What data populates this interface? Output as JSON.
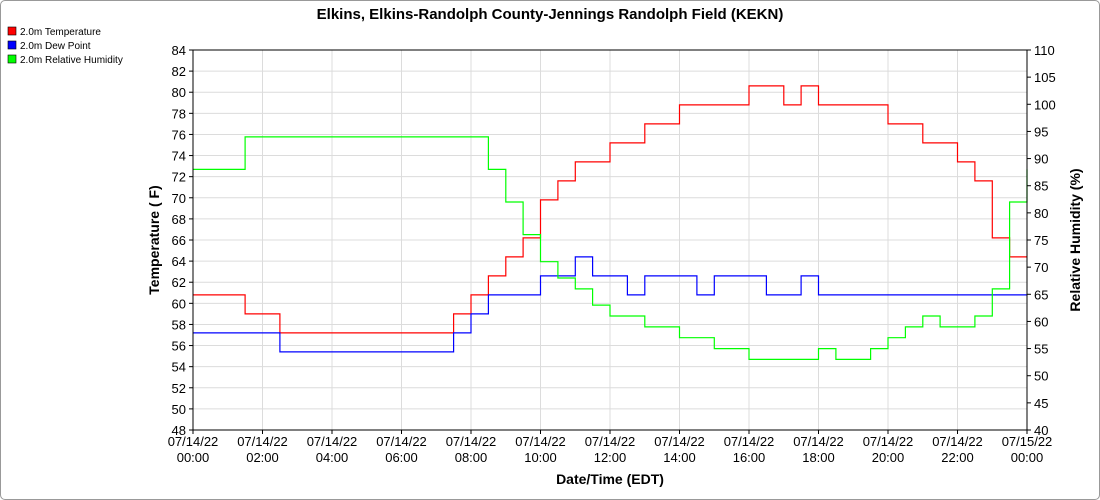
{
  "chart_data": {
    "type": "line",
    "title": "Elkins, Elkins-Randolph County-Jennings Randolph Field (KEKN)",
    "xlabel": "Date/Time (EDT)",
    "ylabel": "Temperature ( F)",
    "y2label": "Relative Humidity (%)",
    "xlim": [
      0,
      24
    ],
    "ylim": [
      48,
      84
    ],
    "y2lim": [
      40,
      110
    ],
    "y_ticks": [
      "48",
      "50",
      "52",
      "54",
      "56",
      "58",
      "60",
      "62",
      "64",
      "66",
      "68",
      "70",
      "72",
      "74",
      "76",
      "78",
      "80",
      "82",
      "84"
    ],
    "y2_ticks": [
      "40",
      "45",
      "50",
      "55",
      "60",
      "65",
      "70",
      "75",
      "80",
      "85",
      "90",
      "95",
      "100",
      "105",
      "110"
    ],
    "x_ticks": [
      {
        "hour": 0,
        "line1": "07/14/22",
        "line2": "00:00"
      },
      {
        "hour": 2,
        "line1": "07/14/22",
        "line2": "02:00"
      },
      {
        "hour": 4,
        "line1": "07/14/22",
        "line2": "04:00"
      },
      {
        "hour": 6,
        "line1": "07/14/22",
        "line2": "06:00"
      },
      {
        "hour": 8,
        "line1": "07/14/22",
        "line2": "08:00"
      },
      {
        "hour": 10,
        "line1": "07/14/22",
        "line2": "10:00"
      },
      {
        "hour": 12,
        "line1": "07/14/22",
        "line2": "12:00"
      },
      {
        "hour": 14,
        "line1": "07/14/22",
        "line2": "14:00"
      },
      {
        "hour": 16,
        "line1": "07/14/22",
        "line2": "16:00"
      },
      {
        "hour": 18,
        "line1": "07/14/22",
        "line2": "18:00"
      },
      {
        "hour": 20,
        "line1": "07/14/22",
        "line2": "20:00"
      },
      {
        "hour": 22,
        "line1": "07/14/22",
        "line2": "22:00"
      },
      {
        "hour": 24,
        "line1": "07/15/22",
        "line2": "00:00"
      }
    ],
    "grid": true,
    "legend_position": "top-left",
    "x": [
      0,
      0.5,
      1,
      1.5,
      2,
      2.5,
      3,
      3.5,
      4,
      4.5,
      5,
      5.5,
      6,
      6.5,
      7,
      7.5,
      8,
      8.5,
      9,
      9.5,
      10,
      10.5,
      11,
      11.5,
      12,
      12.5,
      13,
      13.5,
      14,
      14.5,
      15,
      15.5,
      16,
      16.5,
      17,
      17.5,
      18,
      18.5,
      19,
      19.5,
      20,
      20.5,
      21,
      21.5,
      22,
      22.5,
      23,
      23.5,
      24
    ],
    "series": [
      {
        "name": "2.0m Temperature",
        "color": "#ff0000",
        "axis": "left",
        "values": [
          60.8,
          60.8,
          60.8,
          59.0,
          59.0,
          57.2,
          57.2,
          57.2,
          57.2,
          57.2,
          57.2,
          57.2,
          57.2,
          57.2,
          57.2,
          59.0,
          60.8,
          62.6,
          64.4,
          66.2,
          69.8,
          71.6,
          73.4,
          73.4,
          75.2,
          75.2,
          77.0,
          77.0,
          78.8,
          78.8,
          78.8,
          78.8,
          80.6,
          80.6,
          78.8,
          80.6,
          78.8,
          78.8,
          78.8,
          78.8,
          77.0,
          77.0,
          75.2,
          75.2,
          73.4,
          71.6,
          66.2,
          64.4,
          64.4
        ]
      },
      {
        "name": "2.0m Dew Point",
        "color": "#0000ff",
        "axis": "left",
        "values": [
          57.2,
          57.2,
          57.2,
          57.2,
          57.2,
          55.4,
          55.4,
          55.4,
          55.4,
          55.4,
          55.4,
          55.4,
          55.4,
          55.4,
          55.4,
          57.2,
          59.0,
          60.8,
          60.8,
          60.8,
          62.6,
          62.6,
          64.4,
          62.6,
          62.6,
          60.8,
          62.6,
          62.6,
          62.6,
          60.8,
          62.6,
          62.6,
          62.6,
          60.8,
          60.8,
          62.6,
          60.8,
          60.8,
          60.8,
          60.8,
          60.8,
          60.8,
          60.8,
          60.8,
          60.8,
          60.8,
          60.8,
          60.8,
          60.8
        ]
      },
      {
        "name": "2.0m Relative Humidity",
        "color": "#00ff00",
        "axis": "right",
        "values": [
          88,
          88,
          88,
          94,
          94,
          94,
          94,
          94,
          94,
          94,
          94,
          94,
          94,
          94,
          94,
          94,
          94,
          88,
          82,
          76,
          71,
          68,
          66,
          63,
          61,
          61,
          59,
          59,
          57,
          57,
          55,
          55,
          53,
          53,
          53,
          53,
          55,
          53,
          53,
          55,
          57,
          59,
          61,
          59,
          59,
          61,
          66,
          82,
          88
        ]
      }
    ]
  }
}
